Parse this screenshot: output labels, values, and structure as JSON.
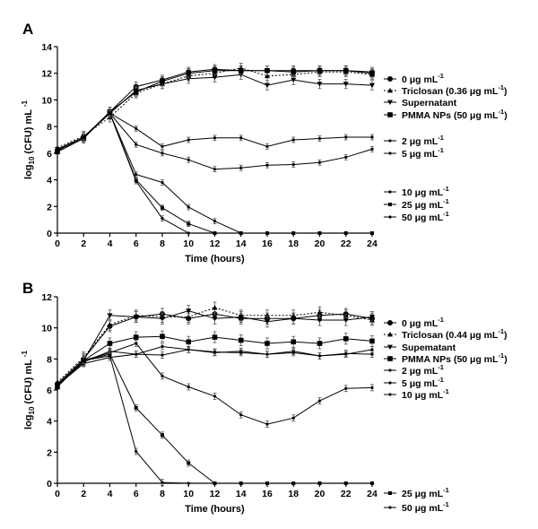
{
  "chart_data": [
    {
      "type": "line",
      "panel": "A",
      "title": "",
      "xlabel": "Time (hours)",
      "ylabel": "log10 (CFU) mL -1",
      "ylabel_parts": {
        "pre": "log",
        "sub": "10",
        "mid": " (CFU) mL ",
        "sup": "-1"
      },
      "xlim": [
        0,
        24
      ],
      "ylim": [
        0,
        14
      ],
      "xticks": [
        0,
        2,
        4,
        6,
        8,
        10,
        12,
        14,
        16,
        18,
        20,
        22,
        24
      ],
      "yticks": [
        0,
        2,
        4,
        6,
        8,
        10,
        12,
        14
      ],
      "grid": false,
      "legend_position": "right",
      "x": [
        0,
        2,
        4,
        6,
        8,
        10,
        12,
        14,
        16,
        18,
        20,
        22,
        24
      ],
      "series": [
        {
          "name": "0 µg mL-1",
          "label_main": "0 μg mL",
          "label_sup": "-1",
          "label_tail": "",
          "marker": "circle",
          "dash": false,
          "values": [
            6.2,
            7.2,
            9.1,
            11.0,
            11.5,
            12.1,
            12.3,
            12.2,
            12.2,
            12.2,
            12.2,
            12.2,
            12.1
          ]
        },
        {
          "name": "Triclosan (0.36 µg mL-1)",
          "label_main": "Triclosan (0.36  μg mL",
          "label_sup": "-1",
          "label_tail": ")",
          "marker": "triangle",
          "dash": true,
          "values": [
            6.4,
            7.3,
            8.7,
            10.5,
            11.2,
            11.8,
            12.0,
            12.4,
            11.8,
            11.9,
            12.1,
            12.1,
            11.9
          ]
        },
        {
          "name": "Supernatant",
          "label_main": "Supernatant",
          "label_sup": "",
          "label_tail": "",
          "marker": "triangle-down",
          "dash": false,
          "values": [
            6.3,
            7.2,
            9.0,
            10.7,
            11.2,
            11.6,
            11.7,
            11.9,
            11.1,
            11.5,
            11.2,
            11.2,
            11.1
          ]
        },
        {
          "name": "PMMA NPs (50 µg mL-1)",
          "label_main": "PMMA NPs (50  μg mL",
          "label_sup": "-1",
          "label_tail": ")",
          "marker": "square",
          "dash": false,
          "values": [
            6.1,
            7.1,
            9.1,
            10.6,
            11.4,
            12.0,
            12.2,
            12.2,
            12.2,
            12.1,
            12.2,
            12.2,
            12.0
          ]
        },
        {
          "name": "2 µg mL-1",
          "label_main": "2 μg mL",
          "label_sup": "-1",
          "label_tail": "",
          "marker": "small",
          "dash": false,
          "values": [
            6.2,
            7.2,
            9.0,
            7.85,
            6.5,
            7.0,
            7.15,
            7.15,
            6.5,
            7.0,
            7.1,
            7.2,
            7.2
          ]
        },
        {
          "name": "5 µg mL-1",
          "label_main": "5 μg mL",
          "label_sup": "-1",
          "label_tail": "",
          "marker": "small",
          "dash": false,
          "values": [
            6.2,
            7.2,
            9.0,
            6.65,
            6.0,
            5.5,
            4.8,
            4.9,
            5.1,
            5.15,
            5.3,
            5.7,
            6.3
          ]
        },
        {
          "name": "10 µg mL-1",
          "label_main": "10 μg mL",
          "label_sup": "-1",
          "label_tail": "",
          "marker": "small",
          "dash": false,
          "values": [
            6.2,
            7.2,
            9.0,
            4.4,
            3.8,
            1.95,
            0.9,
            0,
            0,
            0,
            0,
            0,
            0
          ]
        },
        {
          "name": "25 µg mL-1",
          "label_main": "25 μg mL",
          "label_sup": "-1",
          "label_tail": "",
          "marker": "small-square",
          "dash": false,
          "values": [
            6.2,
            7.2,
            9.0,
            4.0,
            1.9,
            0.7,
            0,
            0,
            0,
            0,
            0,
            0,
            0
          ]
        },
        {
          "name": "50 µg mL-1",
          "label_main": "50 μg mL",
          "label_sup": "-1",
          "label_tail": "",
          "marker": "small",
          "dash": false,
          "values": [
            6.2,
            7.2,
            9.0,
            3.9,
            1.1,
            0,
            0,
            0,
            0,
            0,
            0,
            0,
            0
          ]
        }
      ],
      "legend_groups": [
        [
          0,
          1,
          2,
          3
        ],
        [
          4,
          5
        ],
        [
          6,
          7,
          8
        ]
      ]
    },
    {
      "type": "line",
      "panel": "B",
      "title": "",
      "xlabel": "Time (hours)",
      "ylabel": "log10 (CFU) mL -1",
      "ylabel_parts": {
        "pre": "log",
        "sub": "10",
        "mid": " (CFU) mL ",
        "sup": "-1"
      },
      "xlim": [
        0,
        24
      ],
      "ylim": [
        0,
        12
      ],
      "xticks": [
        0,
        2,
        4,
        6,
        8,
        10,
        12,
        14,
        16,
        18,
        20,
        22,
        24
      ],
      "yticks": [
        0,
        2,
        4,
        6,
        8,
        10,
        12
      ],
      "grid": false,
      "legend_position": "right",
      "x": [
        0,
        2,
        4,
        6,
        8,
        10,
        12,
        14,
        16,
        18,
        20,
        22,
        24
      ],
      "series": [
        {
          "name": "0 µg mL-1",
          "label_main": "0 μg mL",
          "label_sup": "-1",
          "label_tail": "",
          "marker": "circle",
          "dash": false,
          "values": [
            6.4,
            8.0,
            10.1,
            10.7,
            10.9,
            10.6,
            10.9,
            10.6,
            10.6,
            10.6,
            10.8,
            10.9,
            10.6
          ]
        },
        {
          "name": "Triclosan (0.44 µg mL-1)",
          "label_main": "Triclosan (0.44  μg mL",
          "label_sup": "-1",
          "label_tail": ")",
          "marker": "triangle",
          "dash": true,
          "values": [
            6.5,
            8.1,
            10.2,
            10.8,
            10.7,
            10.7,
            11.3,
            10.8,
            10.8,
            10.8,
            11.0,
            10.8,
            10.5
          ]
        },
        {
          "name": "Supematant",
          "label_main": "Supematant",
          "label_sup": "",
          "label_tail": "",
          "marker": "triangle-down",
          "dash": false,
          "values": [
            6.3,
            7.9,
            10.8,
            10.7,
            10.6,
            11.1,
            10.6,
            10.7,
            10.4,
            10.6,
            10.5,
            10.5,
            10.7
          ]
        },
        {
          "name": "PMMA NPs (50 µg mL-1)",
          "label_main": "PMMA NPs (50  μg mL",
          "label_sup": "-1",
          "label_tail": ")",
          "marker": "square",
          "dash": false,
          "values": [
            6.2,
            7.9,
            9.0,
            9.4,
            9.45,
            9.1,
            9.4,
            9.2,
            9.0,
            9.1,
            9.0,
            9.3,
            9.15
          ]
        },
        {
          "name": "2 µg mL-1",
          "label_main": "2 μg mL",
          "label_sup": "-1",
          "label_tail": "",
          "marker": "small",
          "dash": false,
          "values": [
            6.3,
            7.8,
            8.5,
            8.3,
            8.8,
            8.6,
            8.4,
            8.5,
            8.3,
            8.5,
            8.2,
            8.3,
            8.6
          ]
        },
        {
          "name": "5 µg mL-1",
          "label_main": "5 μg mL",
          "label_sup": "-1",
          "label_tail": "",
          "marker": "small",
          "dash": false,
          "values": [
            6.3,
            7.7,
            8.1,
            8.3,
            8.25,
            8.6,
            8.45,
            8.4,
            8.3,
            8.4,
            8.2,
            8.35,
            8.3
          ]
        },
        {
          "name": "10 µg mL-1",
          "label_main": "10 μg mL",
          "label_sup": "-1",
          "label_tail": "",
          "marker": "small",
          "dash": false,
          "values": [
            6.3,
            7.9,
            8.4,
            9.0,
            6.9,
            6.2,
            5.6,
            4.4,
            3.8,
            4.2,
            5.3,
            6.1,
            6.15
          ]
        },
        {
          "name": "25 µg mL-1",
          "label_main": "25 μg mL",
          "label_sup": "-1",
          "label_tail": "",
          "marker": "small-square",
          "dash": false,
          "values": [
            6.3,
            7.9,
            8.3,
            4.85,
            3.1,
            1.3,
            0,
            0,
            0,
            0,
            0,
            0,
            0
          ]
        },
        {
          "name": "50 µg mL-1",
          "label_main": "50 μg mL",
          "label_sup": "-1",
          "label_tail": "",
          "marker": "small",
          "dash": false,
          "values": [
            6.3,
            7.9,
            8.2,
            2.05,
            0.05,
            0,
            0,
            0,
            0,
            0,
            0,
            0,
            0
          ]
        }
      ],
      "legend_groups": [
        [
          0,
          1,
          2,
          3,
          4,
          5,
          6
        ],
        [
          7,
          8
        ]
      ]
    }
  ]
}
